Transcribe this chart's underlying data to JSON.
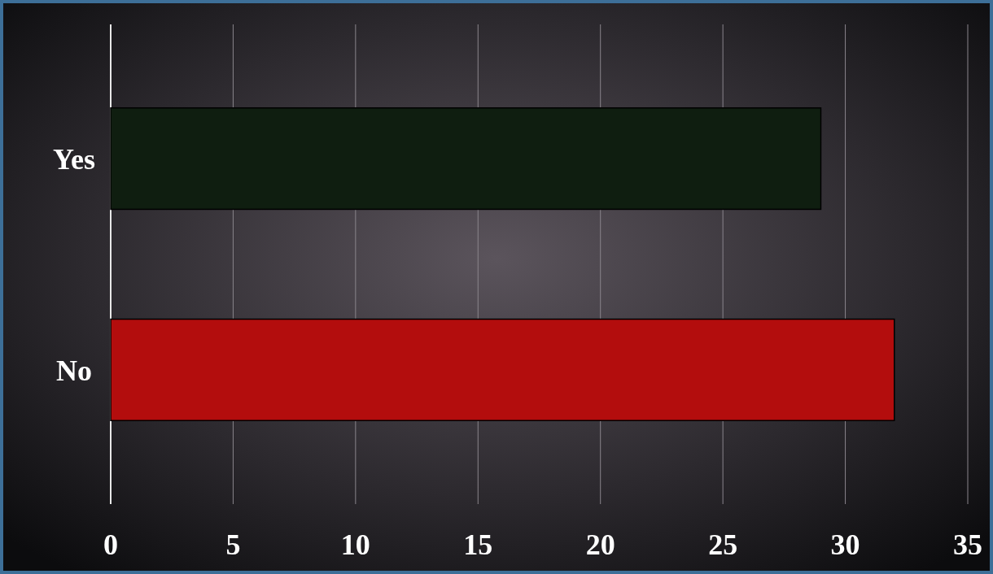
{
  "chart_data": {
    "type": "bar",
    "orientation": "horizontal",
    "categories": [
      "Yes",
      "No"
    ],
    "values": [
      29,
      32
    ],
    "colors": [
      "#0f1e10",
      "#b30d0d"
    ],
    "xlim": [
      0,
      35
    ],
    "xticks": [
      0,
      5,
      10,
      15,
      20,
      25,
      30,
      35
    ],
    "grid": "x"
  }
}
